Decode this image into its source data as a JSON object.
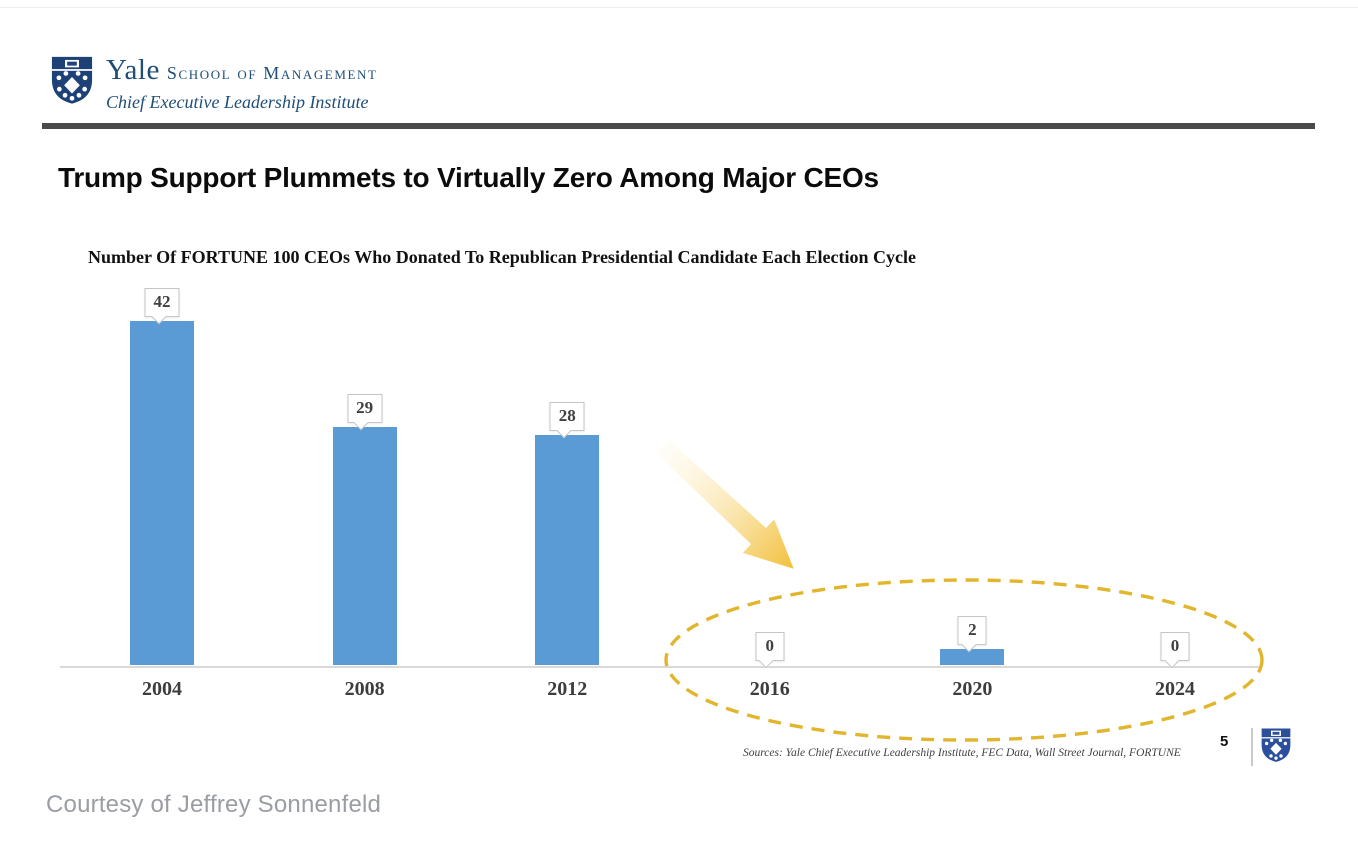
{
  "header": {
    "brand": {
      "name": "Yale",
      "division": "School of Management",
      "institute": "Chief Executive Leadership Institute"
    }
  },
  "slide": {
    "title": "Trump Support Plummets to Virtually Zero Among Major CEOs",
    "page_number": "5",
    "sources_note": "Sources: Yale Chief Executive Leadership Institute, FEC Data,  Wall Street Journal, FORTUNE",
    "courtesy_note": "Courtesy of Jeffrey Sonnenfeld"
  },
  "chart_data": {
    "type": "bar",
    "title": "Number Of FORTUNE 100 CEOs Who Donated To Republican Presidential Candidate Each Election Cycle",
    "categories": [
      "2004",
      "2008",
      "2012",
      "2016",
      "2020",
      "2024"
    ],
    "values": [
      42,
      29,
      28,
      0,
      2,
      0
    ],
    "data_labels": [
      "42",
      "29",
      "28",
      "0",
      "2",
      "0"
    ],
    "xlabel": "",
    "ylabel": "",
    "ylim": [
      0,
      45
    ],
    "grid": false,
    "legend": "none",
    "bar_color": "#5b9bd5",
    "axis_line_color": "#d9d9d9",
    "data_label_color": "#404040",
    "highlight": {
      "type": "dashed-ellipse-with-arrow",
      "categories_circled": [
        "2016",
        "2020",
        "2024"
      ],
      "ellipse_color": "#e1b52c",
      "arrow_color_strong": "#f3bf3a",
      "arrow_color_faint": "#fdf3d2"
    }
  },
  "colors": {
    "brand_navy": "#1f4e79",
    "header_rule_dark": "#4a4a4a"
  }
}
